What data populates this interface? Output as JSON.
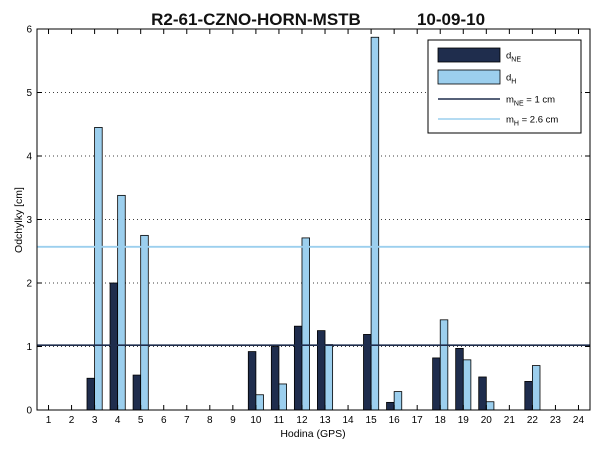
{
  "chart_data": {
    "type": "bar",
    "title": "R2-61-CZNO-HORN-MSTB",
    "date": "10-09-10",
    "xlabel": "Hodina (GPS)",
    "ylabel": "Odchylky [cm]",
    "categories": [
      "1",
      "2",
      "3",
      "4",
      "5",
      "6",
      "7",
      "8",
      "9",
      "10",
      "11",
      "12",
      "13",
      "14",
      "15",
      "16",
      "17",
      "18",
      "19",
      "20",
      "21",
      "22",
      "23",
      "24"
    ],
    "ylim": [
      0,
      6
    ],
    "yticks": [
      "0",
      "1",
      "2",
      "3",
      "4",
      "5",
      "6"
    ],
    "grid": "horizontal dotted",
    "legend_position": "top-right",
    "series": [
      {
        "legend_main": "d",
        "legend_sub": "NE",
        "color": "#1f2d4d",
        "values": [
          0,
          0,
          0.5,
          2.0,
          0.55,
          0,
          0,
          0,
          0,
          0.92,
          1.0,
          1.32,
          1.25,
          0,
          1.19,
          0.12,
          0,
          0.82,
          0.97,
          0.52,
          0,
          0.45,
          0,
          0
        ]
      },
      {
        "legend_main": "d",
        "legend_sub": "H",
        "color": "#9ccfee",
        "values": [
          0,
          0,
          4.45,
          3.38,
          2.75,
          0,
          0,
          0,
          0,
          0.24,
          0.41,
          2.71,
          1.03,
          0,
          5.87,
          0.29,
          0,
          1.42,
          0.79,
          0.13,
          0,
          0.7,
          0,
          0
        ]
      }
    ],
    "reference_lines": [
      {
        "legend_main": "m",
        "legend_sub": "NE",
        "legend_suffix": " = 1 cm",
        "value": 1.02,
        "color": "#1f2d4d"
      },
      {
        "legend_main": "m",
        "legend_sub": "H",
        "legend_suffix": " = 2.6 cm",
        "value": 2.57,
        "color": "#9ccfee"
      }
    ]
  }
}
